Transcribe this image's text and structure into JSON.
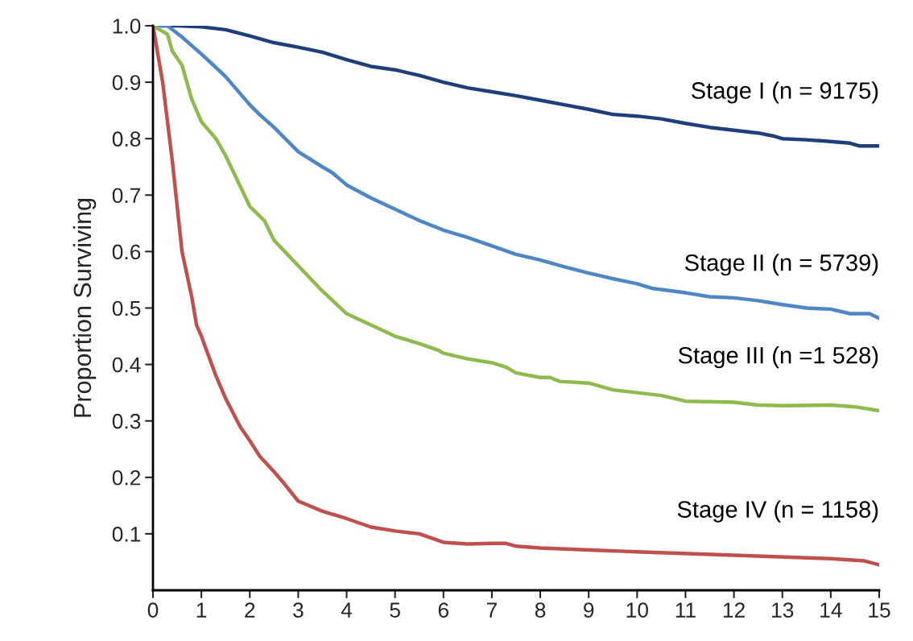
{
  "chart_data": {
    "type": "line",
    "ylabel": "Proportion Surviving",
    "xlim": [
      0,
      15
    ],
    "ylim": [
      0,
      1.0
    ],
    "xticks": [
      0,
      1,
      2,
      3,
      4,
      5,
      6,
      7,
      8,
      9,
      10,
      11,
      12,
      13,
      14,
      15
    ],
    "yticks": [
      0.1,
      0.2,
      0.3,
      0.4,
      0.5,
      0.6,
      0.7,
      0.8,
      0.9,
      {
        "value": 1.0,
        "label": "1.0"
      }
    ],
    "grid": false,
    "legend": false,
    "line_style": "solid",
    "marker": "none",
    "series": [
      {
        "name": "Stage I (n = 9175)",
        "color": "#1f3f7a",
        "x": [
          0,
          0.5,
          1,
          1.5,
          2,
          2.5,
          3,
          3.5,
          4,
          4.5,
          5,
          5.5,
          6,
          6.5,
          7,
          7.5,
          8,
          8.5,
          9,
          9.5,
          10,
          10.5,
          11,
          11.5,
          12,
          12.5,
          12.8,
          13,
          13.5,
          14,
          14.4,
          14.6,
          15
        ],
        "values": [
          1.0,
          1.0,
          0.998,
          0.993,
          0.982,
          0.97,
          0.962,
          0.953,
          0.94,
          0.928,
          0.922,
          0.912,
          0.9,
          0.89,
          0.883,
          0.876,
          0.868,
          0.86,
          0.852,
          0.843,
          0.84,
          0.835,
          0.827,
          0.82,
          0.815,
          0.81,
          0.805,
          0.8,
          0.798,
          0.795,
          0.792,
          0.787,
          0.787
        ]
      },
      {
        "name": "Stage II (n = 5739)",
        "color": "#4f86c6",
        "x": [
          0,
          0.3,
          0.6,
          1,
          1.5,
          2,
          2.2,
          2.5,
          3,
          3.5,
          3.7,
          4,
          4.5,
          5,
          5.5,
          6,
          6.5,
          7,
          7.5,
          8,
          8.5,
          9,
          9.5,
          10,
          10.3,
          11,
          11.5,
          12,
          12.5,
          13,
          13.5,
          14,
          14.4,
          14.8,
          15
        ],
        "values": [
          1.0,
          1.0,
          0.98,
          0.95,
          0.91,
          0.86,
          0.843,
          0.82,
          0.777,
          0.75,
          0.74,
          0.718,
          0.695,
          0.675,
          0.655,
          0.638,
          0.625,
          0.61,
          0.595,
          0.585,
          0.573,
          0.562,
          0.552,
          0.543,
          0.535,
          0.527,
          0.52,
          0.518,
          0.513,
          0.506,
          0.5,
          0.498,
          0.49,
          0.49,
          0.482
        ]
      },
      {
        "name": "Stage III (n =1 528)",
        "color": "#8fba4e",
        "x": [
          0,
          0.3,
          0.4,
          0.6,
          0.8,
          1,
          1.3,
          1.5,
          2,
          2.3,
          2.5,
          3,
          3.5,
          4,
          4.5,
          5,
          5.5,
          5.9,
          6,
          6.5,
          7,
          7.3,
          7.5,
          8,
          8.2,
          8.4,
          9,
          9.5,
          10,
          10.5,
          11,
          12,
          12.5,
          13,
          14,
          14.5,
          15
        ],
        "values": [
          1.0,
          0.985,
          0.955,
          0.93,
          0.87,
          0.83,
          0.8,
          0.77,
          0.68,
          0.655,
          0.62,
          0.575,
          0.53,
          0.49,
          0.47,
          0.45,
          0.437,
          0.425,
          0.42,
          0.41,
          0.403,
          0.395,
          0.385,
          0.377,
          0.377,
          0.37,
          0.367,
          0.355,
          0.35,
          0.345,
          0.335,
          0.333,
          0.328,
          0.327,
          0.328,
          0.325,
          0.318
        ]
      },
      {
        "name": "Stage IV (n = 1158)",
        "color": "#c0504d",
        "x": [
          0,
          0.2,
          0.4,
          0.6,
          0.8,
          0.9,
          1,
          1.3,
          1.5,
          1.8,
          2,
          2.2,
          2.5,
          2.7,
          3,
          3.5,
          4,
          4.5,
          5,
          5.5,
          6,
          6.5,
          7,
          7.3,
          7.5,
          8,
          10,
          12,
          14,
          14.7,
          15
        ],
        "values": [
          1.0,
          0.9,
          0.76,
          0.6,
          0.52,
          0.47,
          0.45,
          0.38,
          0.34,
          0.29,
          0.265,
          0.238,
          0.21,
          0.19,
          0.158,
          0.14,
          0.127,
          0.112,
          0.105,
          0.1,
          0.085,
          0.082,
          0.083,
          0.083,
          0.078,
          0.075,
          0.068,
          0.062,
          0.056,
          0.052,
          0.045
        ]
      }
    ]
  }
}
